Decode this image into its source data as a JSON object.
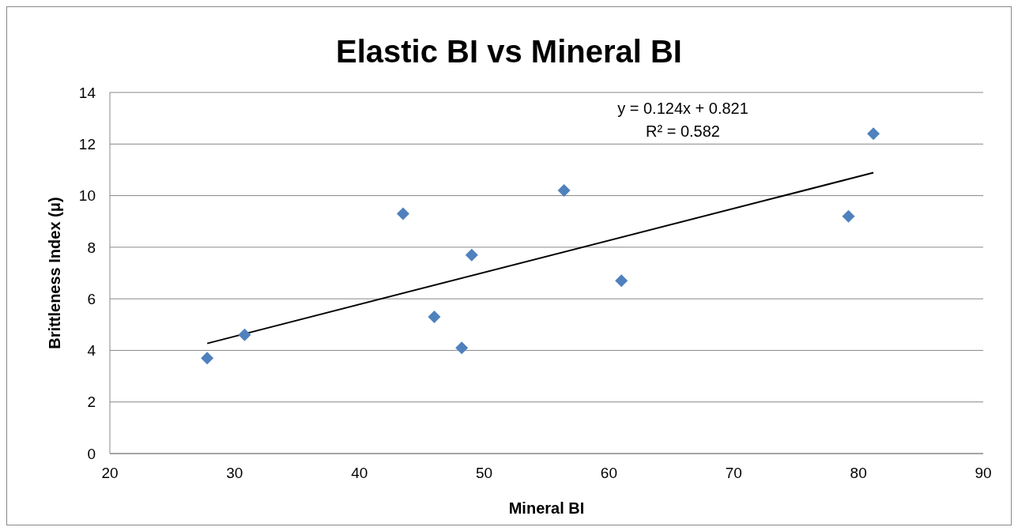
{
  "chart_data": {
    "type": "scatter",
    "title": "Elastic BI vs Mineral BI",
    "xlabel": "Mineral BI",
    "ylabel": "Brittleness Index (μ)",
    "xlim": [
      20,
      90
    ],
    "xticks": [
      20,
      30,
      40,
      50,
      60,
      70,
      80,
      90
    ],
    "ylim": [
      0,
      14
    ],
    "yticks": [
      0,
      2,
      4,
      6,
      8,
      10,
      12,
      14
    ],
    "grid": "y",
    "marker": "diamond",
    "annotations": [
      "y = 0.124x + 0.821",
      "R² = 0.582"
    ],
    "series": [
      {
        "color": "#4f81bd",
        "x": [
          27.8,
          30.8,
          43.5,
          46.0,
          48.2,
          49.0,
          56.4,
          61.0,
          79.2,
          81.2
        ],
        "values": [
          3.7,
          4.6,
          9.3,
          5.3,
          4.1,
          7.7,
          10.2,
          6.7,
          9.2,
          12.4
        ]
      },
      {
        "type": "line",
        "color": "#000000",
        "line_style": "solid",
        "marker": "none",
        "x": [
          27.8,
          81.2
        ],
        "values": [
          4.27,
          10.89
        ]
      }
    ]
  }
}
